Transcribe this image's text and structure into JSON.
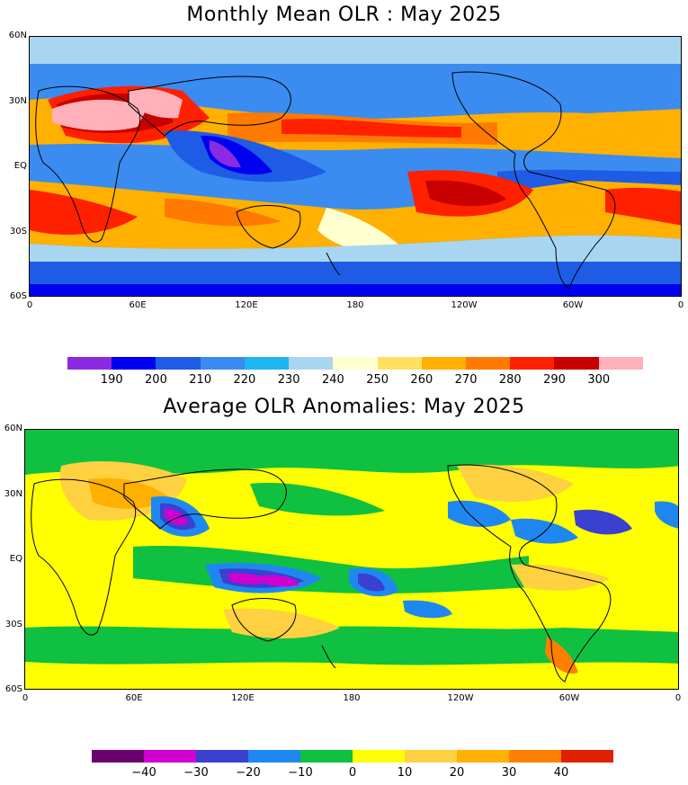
{
  "map1": {
    "title": "Monthly Mean OLR : May 2025",
    "lat_labels": [
      "60N",
      "30N",
      "EQ",
      "30S",
      "60S"
    ],
    "lon_labels": [
      "0",
      "60E",
      "120E",
      "180",
      "120W",
      "60W",
      "0"
    ],
    "colorbar": {
      "colors": [
        "#8a2be2",
        "#0000f0",
        "#1e5ce6",
        "#3a8cf0",
        "#20b4f0",
        "#a8d6f0",
        "#ffffd0",
        "#ffe060",
        "#ffb000",
        "#ff7a00",
        "#ff2000",
        "#c80000",
        "#ffb0b8"
      ],
      "labels": [
        "190",
        "200",
        "210",
        "220",
        "230",
        "240",
        "250",
        "260",
        "270",
        "280",
        "290",
        "300"
      ]
    }
  },
  "map2": {
    "title": "Average OLR Anomalies: May 2025",
    "lat_labels": [
      "60N",
      "30N",
      "EQ",
      "30S",
      "60S"
    ],
    "lon_labels": [
      "0",
      "60E",
      "120E",
      "180",
      "120W",
      "60W",
      "0"
    ],
    "colorbar": {
      "colors": [
        "#6a0070",
        "#d000d0",
        "#3a40d0",
        "#1e88f0",
        "#10c040",
        "#ffff00",
        "#ffd040",
        "#ffb000",
        "#ff8000",
        "#e02000"
      ],
      "labels": [
        "−40",
        "−30",
        "−20",
        "−10",
        "0",
        "10",
        "20",
        "30",
        "40"
      ]
    }
  }
}
